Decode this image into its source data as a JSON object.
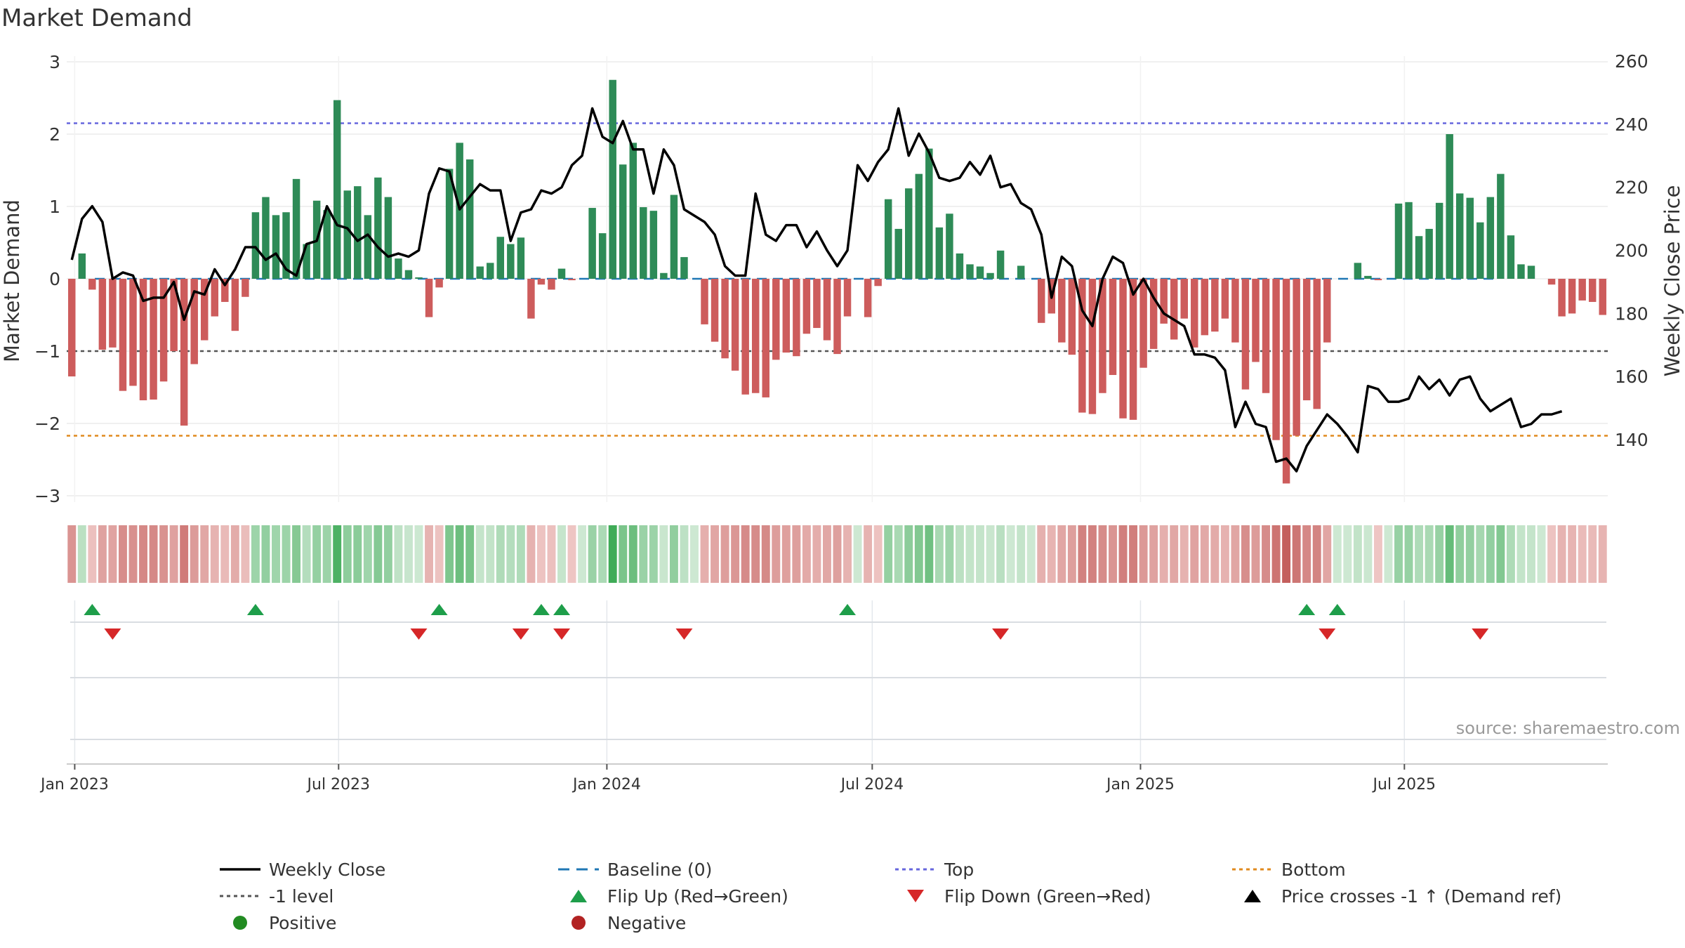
{
  "title": "Market Demand",
  "source": "source: sharemaestro.com",
  "colors": {
    "positive_bar": "#2e8b57",
    "negative_bar": "#cd5c5c",
    "price_line": "#000000",
    "baseline": "#1f77b4",
    "top_line": "#6666dd",
    "bottom_line": "#e08a1e",
    "minus_one_line": "#555555",
    "flip_up": "#1e9e4a",
    "flip_down": "#d62728",
    "positive_dot": "#228b22",
    "negative_dot": "#b22222"
  },
  "chart_data": {
    "type": "bar",
    "title": "Market Demand",
    "ylabel": "Market Demand",
    "y2label": "Weekly Close Price",
    "ylim": [
      -3,
      3
    ],
    "y2lim": [
      130,
      260
    ],
    "yticks": [
      "3",
      "2",
      "1",
      "0",
      "−1",
      "−2",
      "−3"
    ],
    "y2ticks": [
      "260",
      "240",
      "220",
      "200",
      "180",
      "160",
      "140"
    ],
    "x_ticks": [
      "Jan 2023",
      "Jul 2023",
      "Jan 2024",
      "Jul 2024",
      "Jan 2025",
      "Jul 2025"
    ],
    "x_start": "2022-12-30",
    "grid": true,
    "legend_position": "bottom",
    "reference_lines": {
      "top": 2.15,
      "bottom": -2.17,
      "minus_one": -1,
      "baseline": 0
    },
    "series": [
      {
        "name": "Market Demand",
        "values": [
          -1.35,
          0.35,
          -0.15,
          -0.98,
          -0.95,
          -1.55,
          -1.48,
          -1.68,
          -1.67,
          -1.42,
          -1.0,
          -2.03,
          -1.18,
          -0.85,
          -0.52,
          -0.32,
          -0.72,
          -0.25,
          0.92,
          1.13,
          0.88,
          0.92,
          1.38,
          0.48,
          1.08,
          0.95,
          2.47,
          1.22,
          1.28,
          0.88,
          1.4,
          1.13,
          0.28,
          0.12,
          0.02,
          -0.53,
          -0.12,
          1.52,
          1.88,
          1.65,
          0.17,
          0.22,
          0.58,
          0.48,
          0.57,
          -0.55,
          -0.08,
          -0.15,
          0.14,
          -0.02,
          0.0,
          0.98,
          0.63,
          2.75,
          1.58,
          1.88,
          0.99,
          0.94,
          0.08,
          1.16,
          0.3,
          0.0,
          -0.63,
          -0.87,
          -1.1,
          -1.27,
          -1.6,
          -1.58,
          -1.64,
          -1.12,
          -1.02,
          -1.07,
          -0.76,
          -0.68,
          -0.85,
          -1.04,
          -0.52,
          0.0,
          -0.53,
          -0.1,
          1.1,
          0.69,
          1.25,
          1.45,
          1.8,
          0.71,
          0.9,
          0.35,
          0.2,
          0.17,
          0.08,
          0.39,
          0.0,
          0.18,
          0.0,
          -0.61,
          -0.48,
          -0.88,
          -1.05,
          -1.85,
          -1.87,
          -1.58,
          -1.33,
          -1.93,
          -1.95,
          -1.23,
          -0.97,
          -0.62,
          -0.84,
          -0.55,
          -0.95,
          -0.78,
          -0.73,
          -0.55,
          -0.88,
          -1.53,
          -1.15,
          -1.58,
          -2.23,
          -2.83,
          -2.17,
          -1.68,
          -1.8,
          -0.88,
          0.0,
          0.0,
          0.22,
          0.04,
          -0.02,
          0.0,
          1.04,
          1.06,
          0.59,
          0.69,
          1.05,
          2.0,
          1.18,
          1.12,
          0.78,
          1.13,
          1.45,
          0.6,
          0.2,
          0.18,
          0.0,
          -0.08,
          -0.52,
          -0.48,
          -0.3,
          -0.32,
          -0.5
        ]
      },
      {
        "name": "Weekly Close",
        "values": [
          197,
          210,
          214,
          209,
          191,
          193,
          192,
          184,
          185,
          185,
          190,
          178,
          187,
          186,
          194,
          189,
          194,
          201,
          201,
          197,
          199,
          194,
          192,
          202,
          203,
          214,
          208,
          207,
          203,
          205,
          201,
          198,
          199,
          198,
          200,
          218,
          226,
          225,
          213,
          217,
          221,
          219,
          219,
          203,
          212,
          213,
          219,
          218,
          220,
          227,
          230,
          245,
          236,
          234,
          241,
          232,
          232,
          218,
          232,
          227,
          213,
          211,
          209,
          205,
          195,
          192,
          192,
          218,
          205,
          203,
          208,
          208,
          201,
          206,
          200,
          195,
          200,
          227,
          222,
          228,
          232,
          245,
          230,
          237,
          231,
          223,
          222,
          223,
          228,
          224,
          230,
          220,
          221,
          215,
          213,
          205,
          185,
          198,
          195,
          181,
          176,
          191,
          198,
          196,
          186,
          191,
          185,
          180,
          178,
          176,
          167,
          167,
          166,
          162,
          144,
          152,
          145,
          144,
          133,
          134,
          130,
          138,
          143,
          148,
          145,
          141,
          136,
          157,
          156,
          152,
          152,
          153,
          160,
          156,
          159,
          154,
          159,
          160,
          153,
          149,
          151,
          153,
          144,
          145,
          148,
          148,
          149
        ],
        "color": "#000000"
      }
    ],
    "flip_up_x": [
      2,
      18,
      36,
      46,
      48,
      76,
      121,
      124
    ],
    "flip_down_x": [
      4,
      34,
      44,
      48,
      60,
      91,
      123,
      138
    ]
  },
  "legend": [
    {
      "label": "Weekly Close",
      "marker": "solid-line",
      "color": "#000000"
    },
    {
      "label": "Baseline (0)",
      "marker": "dashed-line",
      "color": "#1f77b4"
    },
    {
      "label": "Top",
      "marker": "dotted-line",
      "color": "#6666dd"
    },
    {
      "label": "Bottom",
      "marker": "dotted-line",
      "color": "#e08a1e"
    },
    {
      "label": "-1 level",
      "marker": "dotted-line",
      "color": "#555555"
    },
    {
      "label": "Flip Up (Red→Green)",
      "marker": "triangle-up",
      "color": "#1e9e4a"
    },
    {
      "label": "Flip Down (Green→Red)",
      "marker": "triangle-down",
      "color": "#d62728"
    },
    {
      "label": "Price crosses -1 ↑ (Demand ref)",
      "marker": "triangle-up",
      "color": "#000000"
    },
    {
      "label": "Positive",
      "marker": "dot",
      "color": "#228b22"
    },
    {
      "label": "Negative",
      "marker": "dot",
      "color": "#b22222"
    }
  ]
}
